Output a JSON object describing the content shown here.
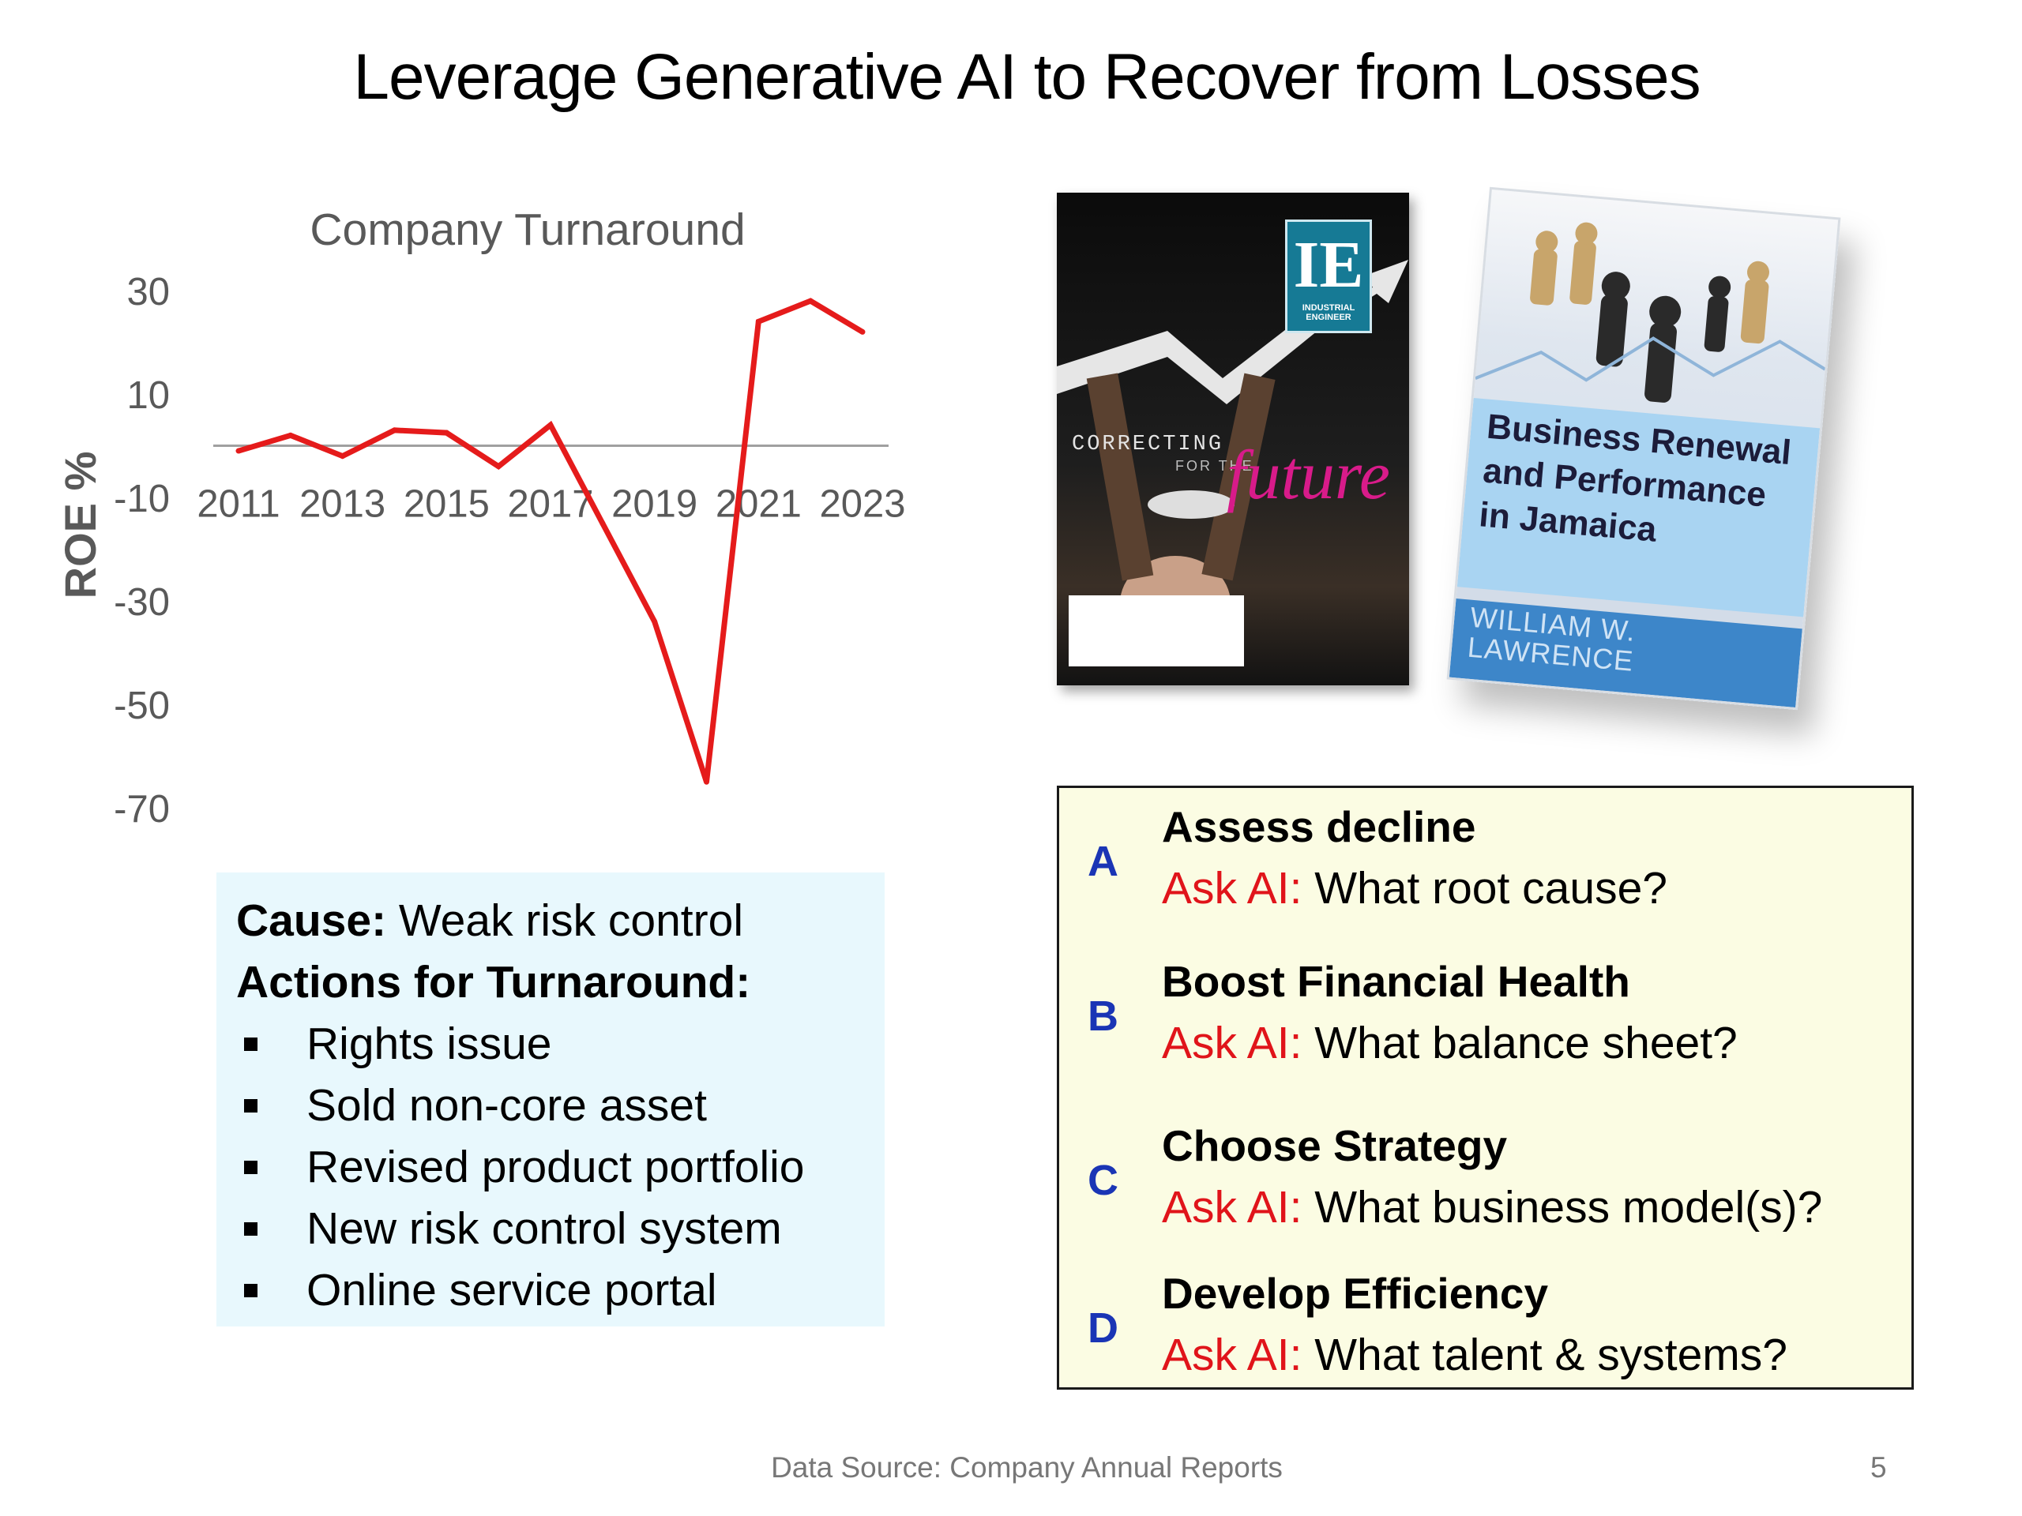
{
  "slide": {
    "title": "Leverage Generative AI to Recover from Losses",
    "footer_source": "Data Source: Company Annual Reports",
    "page_number": "5"
  },
  "chart_data": {
    "type": "line",
    "title": "Company Turnaround",
    "ylabel": "ROE %",
    "xlabel": "",
    "x": [
      2011,
      2012,
      2013,
      2014,
      2015,
      2016,
      2017,
      2018,
      2019,
      2020,
      2021,
      2022,
      2023
    ],
    "x_tick_labels": [
      "2011",
      "2013",
      "2015",
      "2017",
      "2019",
      "2021",
      "2023"
    ],
    "y_tick_labels": [
      "30",
      "10",
      "-10",
      "-30",
      "-50",
      "-70"
    ],
    "ylim": [
      -70,
      30
    ],
    "series": [
      {
        "values": [
          -1,
          2,
          -2,
          3,
          2.5,
          -4,
          4,
          -15,
          -34,
          -65,
          24,
          28,
          22
        ]
      }
    ],
    "line_color": "#e51b1b",
    "zero_line_color": "#a0a0a0",
    "grid": false,
    "legend": "none"
  },
  "cause_box": {
    "cause_label": "Cause:",
    "cause_text": " Weak risk control",
    "actions_label": "Actions for Turnaround:",
    "actions": [
      "Rights issue",
      "Sold non-core asset",
      "Revised product portfolio",
      "New risk control system",
      "Online service portal"
    ]
  },
  "books": {
    "ie": {
      "logo": "IE",
      "logo_sub": "INDUSTRIAL ENGINEER",
      "kicker": "CORRECTING",
      "sub": "FOR THE",
      "future": "future"
    },
    "biz": {
      "title": "Business Renewal and Performance in Jamaica",
      "author": "WILLIAM W. LAWRENCE"
    }
  },
  "steps": {
    "ask_label": "Ask AI:",
    "items": [
      {
        "letter": "A",
        "heading": "Assess decline",
        "question": " What root cause?"
      },
      {
        "letter": "B",
        "heading": "Boost Financial Health",
        "question": " What balance sheet?"
      },
      {
        "letter": "C",
        "heading": "Choose Strategy",
        "question": " What business model(s)?"
      },
      {
        "letter": "D",
        "heading": "Develop Efficiency",
        "question": " What talent & systems?"
      }
    ]
  }
}
